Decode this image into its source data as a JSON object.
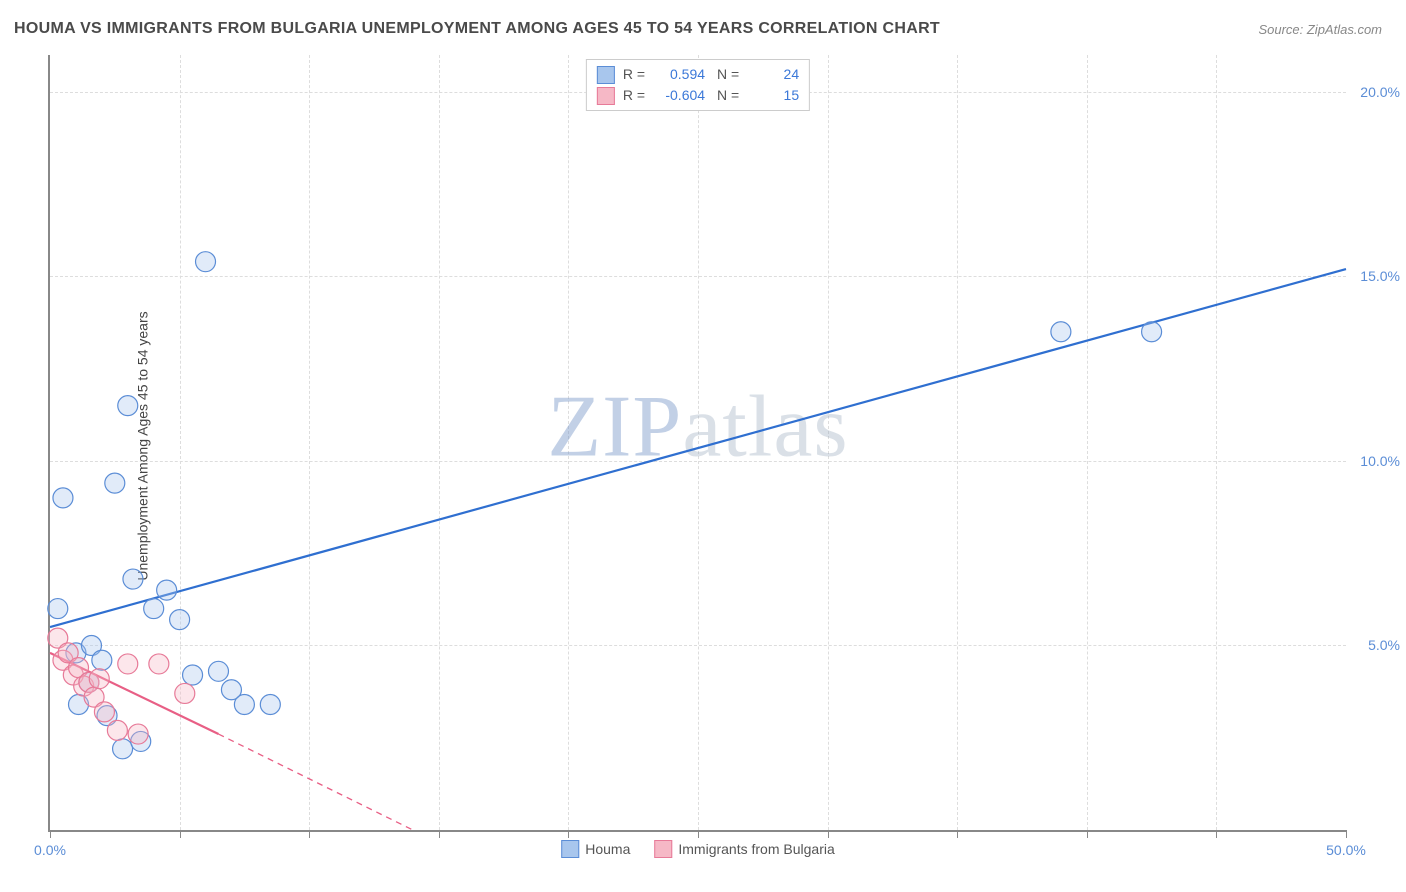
{
  "title": "HOUMA VS IMMIGRANTS FROM BULGARIA UNEMPLOYMENT AMONG AGES 45 TO 54 YEARS CORRELATION CHART",
  "source": "Source: ZipAtlas.com",
  "y_axis_label": "Unemployment Among Ages 45 to 54 years",
  "watermark_a": "ZIP",
  "watermark_b": "atlas",
  "chart": {
    "type": "scatter",
    "xlim": [
      0,
      50
    ],
    "ylim": [
      0,
      21
    ],
    "x_ticks": [
      0,
      5,
      10,
      15,
      20,
      25,
      30,
      35,
      40,
      45,
      50
    ],
    "x_tick_labels": {
      "0": "0.0%",
      "50": "50.0%"
    },
    "y_ticks": [
      5,
      10,
      15,
      20
    ],
    "y_tick_labels": {
      "5": "5.0%",
      "10": "10.0%",
      "15": "15.0%",
      "20": "20.0%"
    },
    "background_color": "#ffffff",
    "grid_color": "#dddddd",
    "axis_color": "#888888",
    "marker_radius": 10,
    "marker_fill_opacity": 0.35,
    "marker_stroke_width": 1.2,
    "line_width": 2.2,
    "series": [
      {
        "id": "houma",
        "label": "Houma",
        "color_fill": "#a8c6ed",
        "color_stroke": "#5b8dd6",
        "line_color": "#2f6fd0",
        "r": "0.594",
        "n": "24",
        "trend": {
          "x1": 0,
          "y1": 5.5,
          "x2": 50,
          "y2": 15.2,
          "dash": "none"
        },
        "points": [
          [
            0.3,
            6.0
          ],
          [
            0.5,
            9.0
          ],
          [
            1.0,
            4.8
          ],
          [
            1.1,
            3.4
          ],
          [
            1.5,
            4.0
          ],
          [
            1.6,
            5.0
          ],
          [
            2.0,
            4.6
          ],
          [
            2.2,
            3.1
          ],
          [
            2.5,
            9.4
          ],
          [
            2.8,
            2.2
          ],
          [
            3.0,
            11.5
          ],
          [
            3.2,
            6.8
          ],
          [
            3.5,
            2.4
          ],
          [
            4.0,
            6.0
          ],
          [
            4.5,
            6.5
          ],
          [
            5.0,
            5.7
          ],
          [
            5.5,
            4.2
          ],
          [
            6.0,
            15.4
          ],
          [
            6.5,
            4.3
          ],
          [
            7.0,
            3.8
          ],
          [
            7.5,
            3.4
          ],
          [
            8.5,
            3.4
          ],
          [
            39.0,
            13.5
          ],
          [
            42.5,
            13.5
          ]
        ]
      },
      {
        "id": "bulgaria",
        "label": "Immigrants from Bulgaria",
        "color_fill": "#f6b8c6",
        "color_stroke": "#e77a98",
        "line_color": "#e85f85",
        "r": "-0.604",
        "n": "15",
        "trend": {
          "x1": 0,
          "y1": 4.8,
          "x2": 6.5,
          "y2": 2.6,
          "dash": "none"
        },
        "trend_ext": {
          "x1": 6.5,
          "y1": 2.6,
          "x2": 14,
          "y2": 0,
          "dash": "6,5"
        },
        "points": [
          [
            0.3,
            5.2
          ],
          [
            0.5,
            4.6
          ],
          [
            0.7,
            4.8
          ],
          [
            0.9,
            4.2
          ],
          [
            1.1,
            4.4
          ],
          [
            1.3,
            3.9
          ],
          [
            1.5,
            4.0
          ],
          [
            1.7,
            3.6
          ],
          [
            1.9,
            4.1
          ],
          [
            2.1,
            3.2
          ],
          [
            2.6,
            2.7
          ],
          [
            3.0,
            4.5
          ],
          [
            3.4,
            2.6
          ],
          [
            4.2,
            4.5
          ],
          [
            5.2,
            3.7
          ]
        ]
      }
    ]
  },
  "legend_bottom": [
    {
      "label": "Houma",
      "fill": "#a8c6ed",
      "stroke": "#5b8dd6"
    },
    {
      "label": "Immigrants from Bulgaria",
      "fill": "#f6b8c6",
      "stroke": "#e77a98"
    }
  ]
}
